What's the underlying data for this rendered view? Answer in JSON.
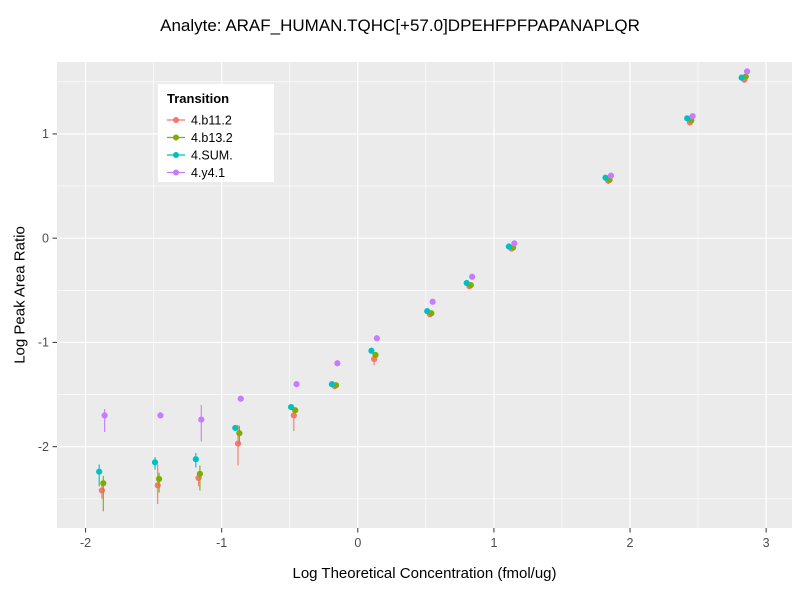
{
  "page": {
    "background": "#FFFFFF"
  },
  "chart_data": {
    "type": "scatter",
    "title": "Analyte: ARAF_HUMAN.TQHC[+57.0]DPEHFPFPAPANAPLQR",
    "xlabel": "Log Theoretical Concentration (fmol/ug)",
    "ylabel": "Log Peak Area Ratio",
    "xlim": [
      -2.21,
      3.19
    ],
    "ylim": [
      -2.78,
      1.69
    ],
    "x_ticks": [
      -2,
      -1,
      0,
      1,
      2,
      3
    ],
    "y_ticks": [
      -2,
      -1,
      0,
      1
    ],
    "grid": true,
    "panel_color": "#EBEBEB",
    "grid_color": "#FFFFFF",
    "tick_color": "#333333",
    "tick_label_color": "#4D4D4D",
    "text_color": "#000000",
    "legend": {
      "title": "Transition",
      "position": "top-left-inside",
      "background": "#FFFFFF"
    },
    "series": [
      {
        "name": "4.b11.2",
        "color": "#F8766D",
        "points": [
          [
            -1.88,
            -2.42,
            -2.5,
            -2.36
          ],
          [
            -1.47,
            -2.37,
            -2.55,
            -2.17
          ],
          [
            -1.17,
            -2.3,
            -2.38,
            -2.24
          ],
          [
            -0.88,
            -1.97,
            -2.18,
            -1.79
          ],
          [
            -0.47,
            -1.7,
            -1.85,
            -1.62
          ],
          [
            -0.17,
            -1.42
          ],
          [
            0.12,
            -1.16,
            -1.22,
            -1.1
          ],
          [
            0.53,
            -0.73
          ],
          [
            0.82,
            -0.46
          ],
          [
            1.13,
            -0.1
          ],
          [
            1.84,
            0.55
          ],
          [
            2.44,
            1.11
          ],
          [
            2.84,
            1.52
          ]
        ]
      },
      {
        "name": "4.b13.2",
        "color": "#7CAE00",
        "points": [
          [
            -1.87,
            -2.35,
            -2.62,
            -2.28
          ],
          [
            -1.46,
            -2.31,
            -2.44,
            -2.25
          ],
          [
            -1.16,
            -2.26,
            -2.42,
            -2.18
          ],
          [
            -0.87,
            -1.87,
            -1.97,
            -1.8
          ],
          [
            -0.46,
            -1.65
          ],
          [
            -0.16,
            -1.41
          ],
          [
            0.13,
            -1.12
          ],
          [
            0.54,
            -0.72
          ],
          [
            0.83,
            -0.45
          ],
          [
            1.14,
            -0.09
          ],
          [
            1.85,
            0.56
          ],
          [
            2.45,
            1.13
          ],
          [
            2.85,
            1.55
          ]
        ]
      },
      {
        "name": "4.SUM.",
        "color": "#00BFC4",
        "points": [
          [
            -1.9,
            -2.24,
            -2.38,
            -2.17
          ],
          [
            -1.49,
            -2.15,
            -2.22,
            -2.1
          ],
          [
            -1.19,
            -2.12,
            -2.2,
            -2.06
          ],
          [
            -0.9,
            -1.82
          ],
          [
            -0.49,
            -1.62
          ],
          [
            -0.19,
            -1.4
          ],
          [
            0.1,
            -1.08
          ],
          [
            0.51,
            -0.7
          ],
          [
            0.8,
            -0.43
          ],
          [
            1.11,
            -0.08
          ],
          [
            1.82,
            0.58
          ],
          [
            2.42,
            1.15
          ],
          [
            2.82,
            1.54
          ]
        ]
      },
      {
        "name": "4.y4.1",
        "color": "#C77CFF",
        "points": [
          [
            -1.86,
            -1.7,
            -1.86,
            -1.64
          ],
          [
            -1.45,
            -1.7
          ],
          [
            -1.15,
            -1.74,
            -1.95,
            -1.6
          ],
          [
            -0.86,
            -1.54
          ],
          [
            -0.45,
            -1.4
          ],
          [
            -0.15,
            -1.2
          ],
          [
            0.14,
            -0.96
          ],
          [
            0.55,
            -0.61
          ],
          [
            0.84,
            -0.37
          ],
          [
            1.15,
            -0.05
          ],
          [
            1.86,
            0.6
          ],
          [
            2.46,
            1.17
          ],
          [
            2.86,
            1.6
          ]
        ]
      }
    ]
  }
}
